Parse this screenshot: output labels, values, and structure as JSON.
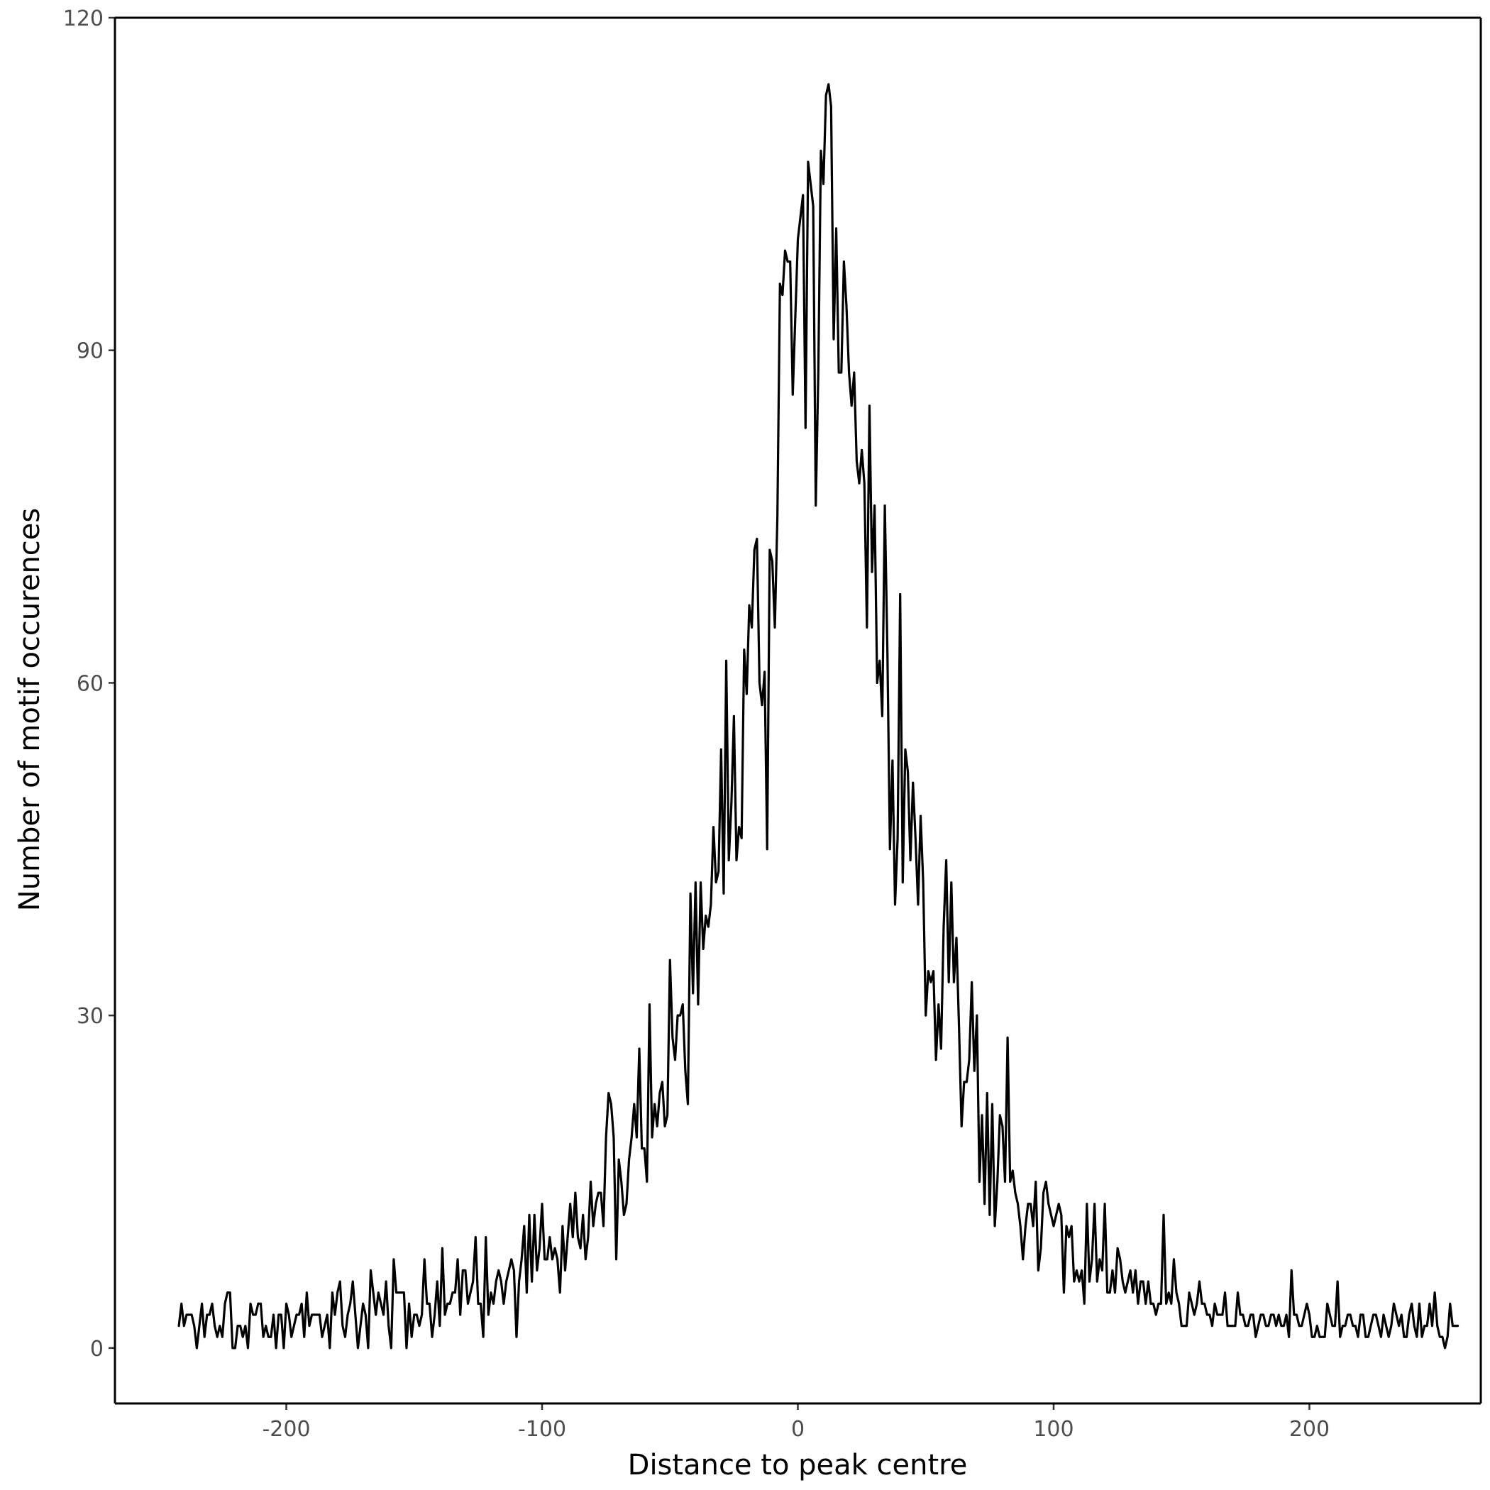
{
  "chart_data": {
    "type": "line",
    "title": "",
    "xlabel": "Distance to peak centre",
    "ylabel": "Number of motif occurences",
    "xlim": [
      -267,
      267
    ],
    "ylim": [
      -5,
      120
    ],
    "xticks": [
      -200,
      -100,
      0,
      100,
      200
    ],
    "xtick_labels": [
      "-200",
      "-100",
      "0",
      "100",
      "200"
    ],
    "yticks": [
      0,
      30,
      60,
      90,
      120
    ],
    "ytick_labels": [
      "0",
      "30",
      "60",
      "90",
      "120"
    ],
    "grid": false,
    "legend": "none",
    "line_color": "#000000",
    "series": [
      {
        "x_start": -242,
        "x_step": 1,
        "values": [
          2,
          4,
          2,
          3,
          3,
          3,
          2,
          0,
          2,
          4,
          1,
          3,
          3,
          4,
          2,
          1,
          2,
          1,
          4,
          5,
          5,
          0,
          0,
          2,
          2,
          1,
          2,
          0,
          4,
          3,
          3,
          4,
          4,
          1,
          2,
          1,
          1,
          3,
          0,
          3,
          3,
          0,
          4,
          3,
          1,
          2,
          3,
          3,
          4,
          1,
          5,
          2,
          3,
          3,
          3,
          3,
          1,
          2,
          3,
          0,
          5,
          3,
          5,
          6,
          2,
          1,
          3,
          4,
          6,
          3,
          0,
          2,
          4,
          3,
          0,
          7,
          5,
          3,
          5,
          4,
          3,
          6,
          2,
          0,
          8,
          5,
          5,
          5,
          5,
          0,
          4,
          1,
          3,
          3,
          2,
          3,
          8,
          4,
          4,
          1,
          3,
          6,
          2,
          9,
          3,
          4,
          4,
          5,
          5,
          8,
          3,
          7,
          7,
          4,
          5,
          6,
          10,
          4,
          4,
          1,
          10,
          3,
          5,
          4,
          6,
          7,
          6,
          4,
          6,
          7,
          8,
          7,
          1,
          6,
          8,
          11,
          5,
          12,
          6,
          12,
          7,
          9,
          13,
          8,
          8,
          10,
          8,
          9,
          8,
          5,
          11,
          7,
          10,
          13,
          10,
          14,
          10,
          9,
          12,
          8,
          10,
          15,
          11,
          13,
          14,
          14,
          11,
          19,
          23,
          22,
          19,
          8,
          17,
          15,
          12,
          13,
          17,
          19,
          22,
          19,
          27,
          18,
          18,
          15,
          31,
          19,
          22,
          20,
          23,
          24,
          20,
          21,
          35,
          28,
          26,
          30,
          30,
          31,
          25,
          22,
          41,
          32,
          42,
          31,
          42,
          36,
          39,
          38,
          40,
          47,
          42,
          43,
          54,
          41,
          62,
          44,
          49,
          57,
          44,
          47,
          46,
          63,
          59,
          67,
          65,
          72,
          73,
          60,
          58,
          61,
          45,
          72,
          71,
          65,
          75,
          96,
          95,
          99,
          98,
          98,
          86,
          93,
          100,
          102,
          104,
          83,
          107,
          105,
          103,
          76,
          88,
          108,
          105,
          113,
          114,
          112,
          91,
          101,
          88,
          88,
          98,
          94,
          88,
          85,
          88,
          80,
          78,
          81,
          78,
          65,
          85,
          70,
          76,
          60,
          62,
          57,
          76,
          63,
          45,
          53,
          40,
          46,
          68,
          42,
          54,
          52,
          44,
          51,
          46,
          40,
          48,
          42,
          30,
          34,
          33,
          34,
          26,
          31,
          27,
          38,
          44,
          33,
          42,
          33,
          37,
          29,
          20,
          24,
          24,
          26,
          33,
          25,
          30,
          15,
          21,
          13,
          23,
          12,
          22,
          11,
          15,
          21,
          20,
          15,
          28,
          15,
          16,
          14,
          13,
          11,
          8,
          11,
          13,
          13,
          11,
          15,
          7,
          9,
          14,
          15,
          13,
          12,
          11,
          12,
          13,
          12,
          5,
          11,
          10,
          11,
          6,
          7,
          6,
          7,
          4,
          13,
          6,
          8,
          13,
          6,
          8,
          7,
          13,
          5,
          5,
          7,
          5,
          9,
          8,
          6,
          5,
          6,
          7,
          5,
          7,
          4,
          6,
          6,
          4,
          6,
          4,
          4,
          3,
          4,
          4,
          12,
          4,
          5,
          4,
          8,
          5,
          4,
          2,
          2,
          2,
          5,
          4,
          3,
          4,
          6,
          4,
          4,
          3,
          3,
          2,
          4,
          3,
          3,
          3,
          5,
          2,
          2,
          2,
          2,
          5,
          3,
          3,
          2,
          2,
          3,
          3,
          1,
          2,
          3,
          3,
          2,
          2,
          3,
          3,
          2,
          3,
          2,
          2,
          3,
          1,
          7,
          3,
          3,
          2,
          2,
          3,
          4,
          3,
          1,
          1,
          2,
          1,
          1,
          1,
          4,
          3,
          2,
          2,
          6,
          1,
          2,
          2,
          3,
          3,
          2,
          2,
          1,
          3,
          3,
          1,
          1,
          2,
          3,
          3,
          2,
          1,
          3,
          2,
          1,
          2,
          4,
          3,
          2,
          3,
          1,
          1,
          3,
          4,
          2,
          1,
          4,
          1,
          2,
          2,
          4,
          2,
          5,
          2,
          1,
          1,
          0,
          1,
          4,
          2,
          2,
          2
        ]
      }
    ]
  }
}
